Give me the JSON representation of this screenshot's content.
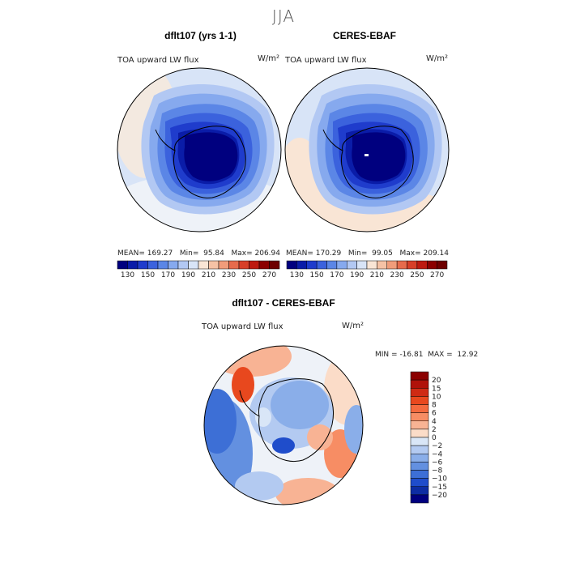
{
  "page": {
    "season": "JJA"
  },
  "panels": {
    "model": {
      "title": "dflt107 (yrs 1-1)",
      "variable": "TOA upward LW flux",
      "units": "W/m²",
      "mean_label": "MEAN=",
      "mean": "169.27",
      "min_label": "Min=",
      "min": "95.84",
      "max_label": "Max=",
      "max": "206.94"
    },
    "obs": {
      "title": "CERES-EBAF",
      "variable": "TOA upward LW flux",
      "units": "W/m²",
      "mean_label": "MEAN=",
      "mean": "170.29",
      "min_label": "Min=",
      "min": "99.05",
      "max_label": "Max=",
      "max": "209.14"
    },
    "diff": {
      "title": "dflt107 - CERES-EBAF",
      "variable": "TOA upward LW flux",
      "units": "W/m²",
      "min_label": "MIN =",
      "min": "-16.81",
      "max_label": "MAX =",
      "max": "12.92"
    }
  },
  "chart_data": [
    {
      "type": "heatmap",
      "projection": "south-polar-stereographic",
      "title": "dflt107 (yrs 1-1)",
      "field": "TOA upward LW flux",
      "units": "W/m2",
      "mean": 169.27,
      "min": 95.84,
      "max": 206.94,
      "colorbar_levels": [
        130,
        140,
        150,
        160,
        170,
        180,
        190,
        200,
        210,
        220,
        230,
        240,
        250,
        260,
        270
      ],
      "colorbar_labels": [
        "130",
        "150",
        "170",
        "190",
        "210",
        "230",
        "250",
        "270"
      ],
      "colors": [
        "#00007f",
        "#0a1ca8",
        "#1f3ccc",
        "#3b62dd",
        "#5b86e6",
        "#86a9ee",
        "#b2c8f3",
        "#d8e4f7",
        "#f9e5d5",
        "#f5c2a5",
        "#f09c7a",
        "#e66b4c",
        "#d73f28",
        "#bd1a10",
        "#8b0000",
        "#6e0000"
      ]
    },
    {
      "type": "heatmap",
      "projection": "south-polar-stereographic",
      "title": "CERES-EBAF",
      "field": "TOA upward LW flux",
      "units": "W/m2",
      "mean": 170.29,
      "min": 99.05,
      "max": 209.14,
      "colorbar_levels": [
        130,
        140,
        150,
        160,
        170,
        180,
        190,
        200,
        210,
        220,
        230,
        240,
        250,
        260,
        270
      ],
      "colorbar_labels": [
        "130",
        "150",
        "170",
        "190",
        "210",
        "230",
        "250",
        "270"
      ]
    },
    {
      "type": "heatmap",
      "projection": "south-polar-stereographic",
      "title": "dflt107 - CERES-EBAF",
      "field": "TOA upward LW flux",
      "units": "W/m2",
      "min": -16.81,
      "max": 12.92,
      "colorbar_labels": [
        "20",
        "15",
        "10",
        "8",
        "6",
        "4",
        "2",
        "0",
        "−2",
        "−4",
        "−6",
        "−8",
        "−10",
        "−15",
        "−20"
      ],
      "colors": [
        "#8b0000",
        "#b0120a",
        "#cf2a14",
        "#e8481e",
        "#f46a3e",
        "#f78d64",
        "#f8b394",
        "#fbdcc8",
        "#d9e6f7",
        "#b3caf1",
        "#8aaee9",
        "#6390e0",
        "#3d6fd6",
        "#1f4dcb",
        "#0d2da3",
        "#00007f"
      ]
    }
  ]
}
